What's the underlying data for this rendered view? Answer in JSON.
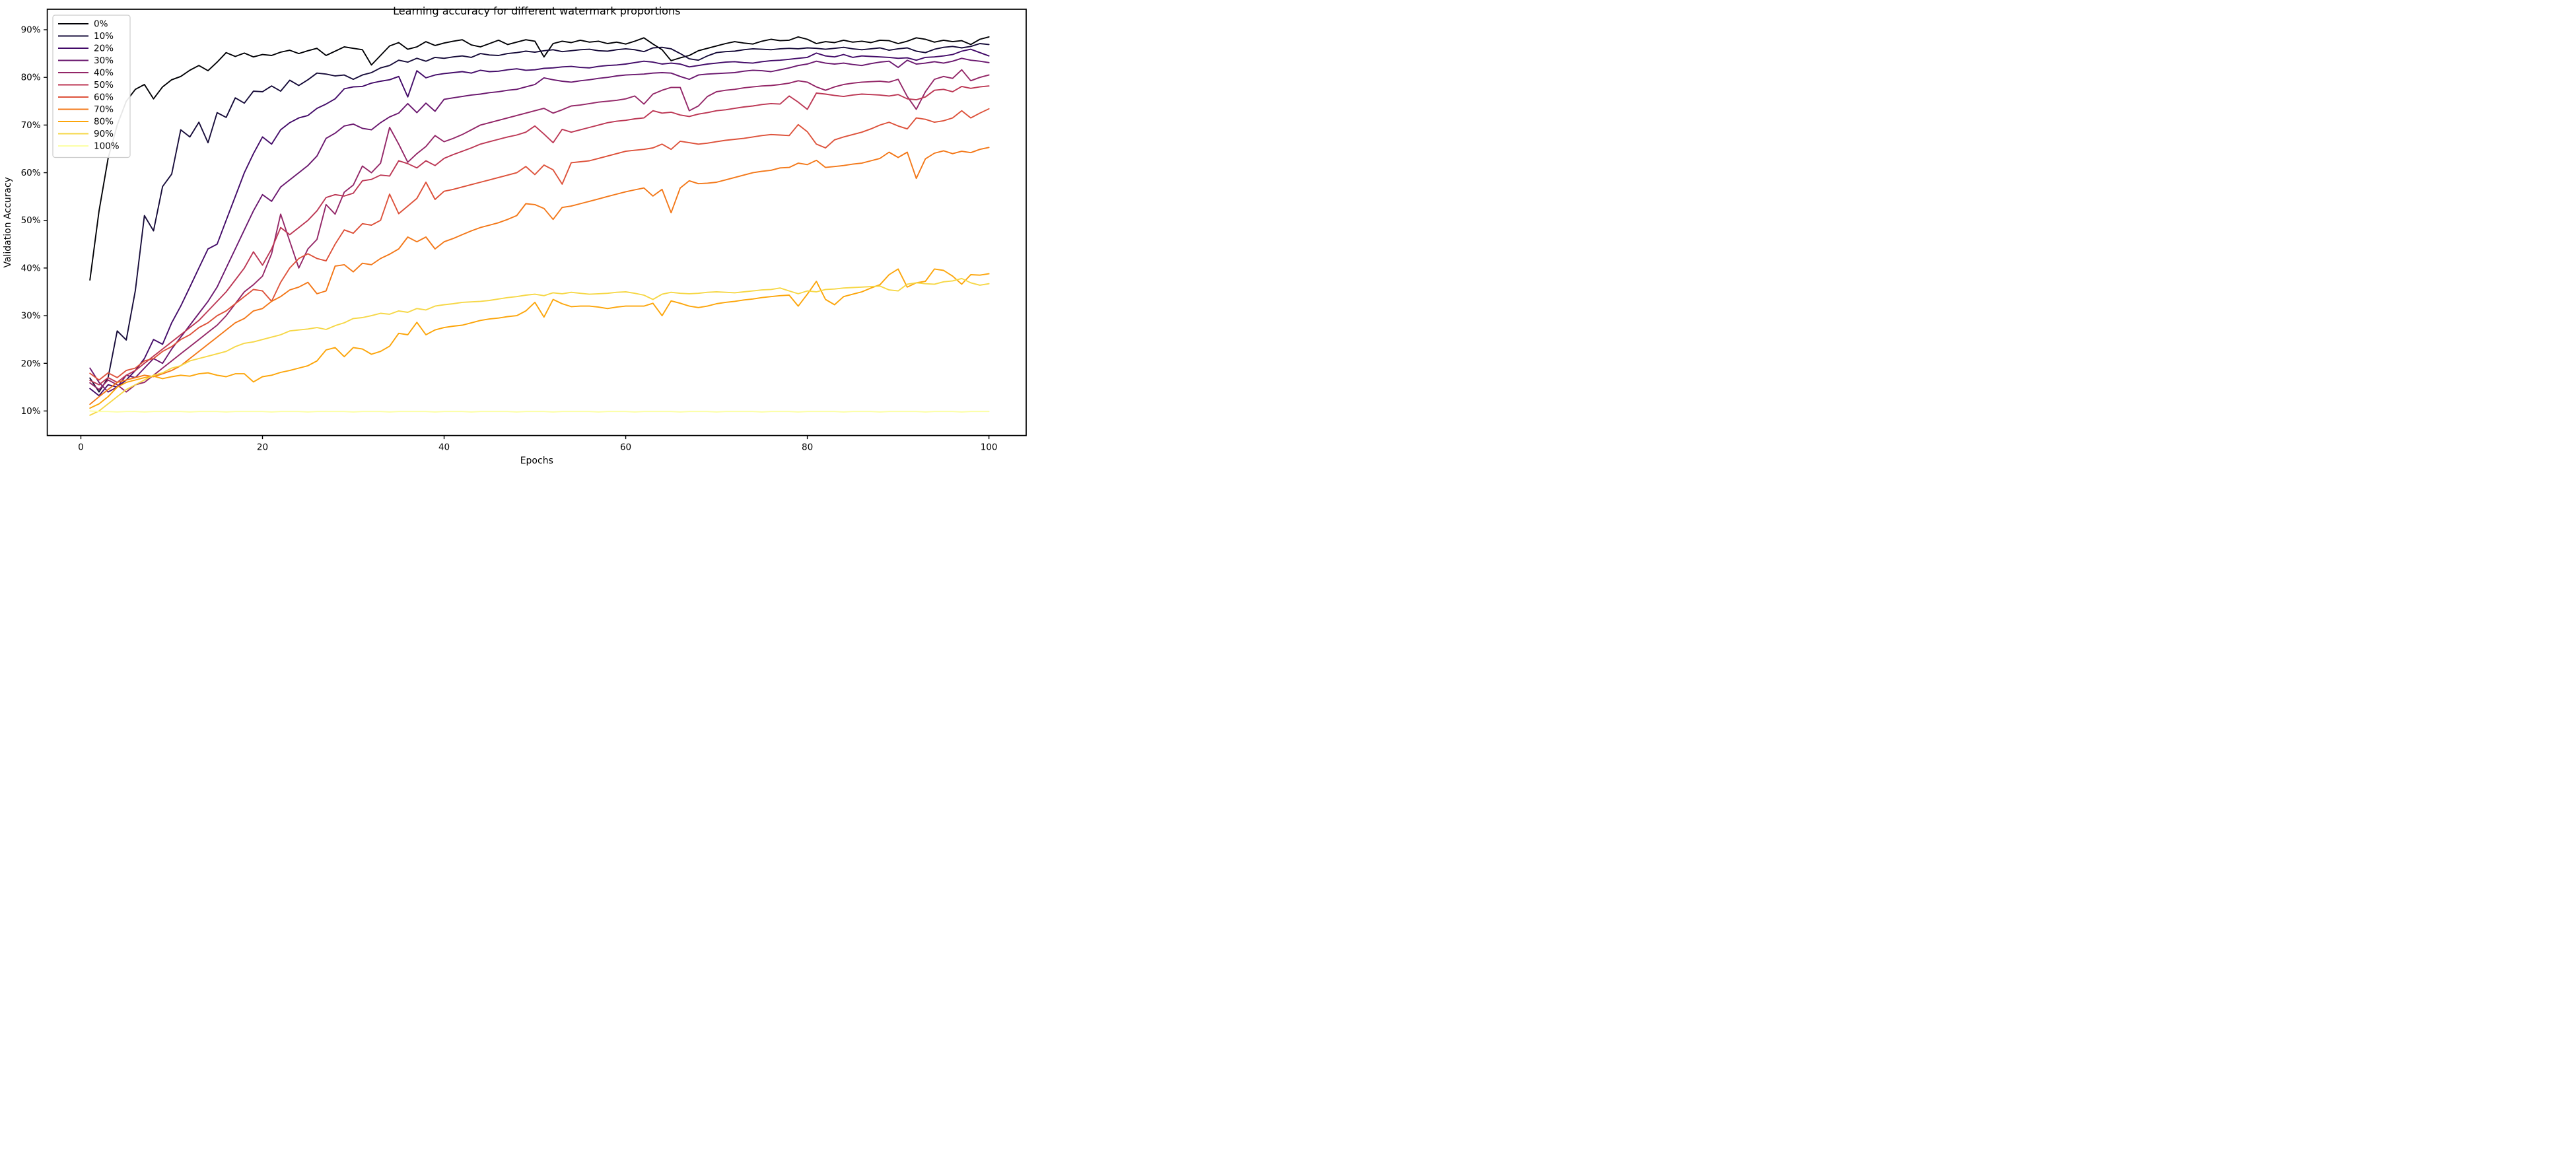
{
  "figure": {
    "title": "Learning accuracy for different watermark proportions",
    "xlabel": "Epochs",
    "ylabel": "Validation Accuracy",
    "background_color": "#ffffff",
    "spine_color": "#000000",
    "legend_border_color": "#cccccc"
  },
  "chart_data": {
    "type": "line",
    "title": "Learning accuracy for different watermark proportions",
    "xlabel": "Epochs",
    "ylabel": "Validation Accuracy",
    "grid": false,
    "legend_position": "upper left",
    "xlim": [
      -3.7,
      104.1
    ],
    "ylim": [
      4.85,
      94.3
    ],
    "xticks": [
      0,
      20,
      40,
      60,
      80,
      100
    ],
    "xticklabels": [
      "0",
      "20",
      "40",
      "60",
      "80",
      "100"
    ],
    "yticks": [
      10,
      20,
      30,
      40,
      50,
      60,
      70,
      80,
      90
    ],
    "yticklabels": [
      "10%",
      "20%",
      "30%",
      "40%",
      "50%",
      "60%",
      "70%",
      "80%",
      "90%"
    ],
    "x_start_epoch": 1,
    "series": [
      {
        "name": "0%",
        "color": "#000004",
        "values": [
          37.5,
          52,
          63,
          70,
          75,
          77.5,
          78.5,
          75.5,
          78,
          79.5,
          80.2,
          81.5,
          82.5,
          81.4,
          83.2,
          85.2,
          84.4,
          85.1,
          84.3,
          84.8,
          84.6,
          85.3,
          85.7,
          85,
          85.6,
          86.1,
          84.6,
          85.5,
          86.4,
          86.1,
          85.8,
          82.6,
          84.6,
          86.6,
          87.3,
          85.9,
          86.4,
          87.5,
          86.7,
          87.2,
          87.6,
          87.9,
          86.8,
          86.4,
          87.1,
          87.8,
          86.9,
          87.4,
          87.9,
          87.6,
          84.3,
          87.1,
          87.6,
          87.3,
          87.8,
          87.4,
          87.6,
          87.1,
          87.4,
          87,
          87.6,
          88.3,
          87,
          85.8,
          83.5,
          84.1,
          84.6,
          85.6,
          86.1,
          86.6,
          87.1,
          87.5,
          87.2,
          87,
          87.6,
          88,
          87.7,
          87.8,
          88.5,
          88,
          87.1,
          87.5,
          87.3,
          87.8,
          87.4,
          87.6,
          87.3,
          87.8,
          87.7,
          87.1,
          87.6,
          88.3,
          88,
          87.4,
          87.8,
          87.5,
          87.7,
          86.9,
          88,
          88.5
        ]
      },
      {
        "name": "10%",
        "color": "#160b39",
        "values": [
          16.9,
          14,
          17,
          26.8,
          24.9,
          35.3,
          51,
          47.8,
          57.1,
          59.7,
          69,
          67.5,
          70.6,
          66.3,
          72.6,
          71.6,
          75.7,
          74.6,
          77.1,
          77,
          78.2,
          77.1,
          79.4,
          78.3,
          79.5,
          80.9,
          80.7,
          80.3,
          80.5,
          79.6,
          80.5,
          81,
          82,
          82.5,
          83.6,
          83.2,
          84,
          83.4,
          84.2,
          84,
          84.3,
          84.5,
          84.2,
          85,
          84.7,
          84.6,
          85,
          85.2,
          85.5,
          85.3,
          85.6,
          85.8,
          85.4,
          85.6,
          85.8,
          85.9,
          85.6,
          85.5,
          85.8,
          86,
          85.8,
          85.4,
          86.2,
          86.3,
          86,
          85,
          83.9,
          83.6,
          84.5,
          85.2,
          85.4,
          85.5,
          85.8,
          86,
          85.9,
          85.8,
          86,
          86.1,
          86,
          86.2,
          86.1,
          85.9,
          86.1,
          86.3,
          86,
          85.8,
          86,
          86.2,
          85.7,
          86,
          86.2,
          85.5,
          85.2,
          85.9,
          86.3,
          86.5,
          86.2,
          86.5,
          87.1,
          86.9
        ]
      },
      {
        "name": "20%",
        "color": "#420a68",
        "values": [
          14.7,
          13.2,
          15.5,
          15,
          16.5,
          18.5,
          21,
          25,
          24,
          28.5,
          32,
          36,
          40,
          44,
          45,
          50,
          55,
          60,
          64,
          67.5,
          66,
          69,
          70.5,
          71.5,
          72,
          73.5,
          74.4,
          75.5,
          77.6,
          78,
          78.1,
          78.8,
          79.2,
          79.5,
          80.2,
          75.9,
          81.4,
          79.9,
          80.5,
          80.8,
          81,
          81.2,
          80.9,
          81.5,
          81.2,
          81.3,
          81.6,
          81.8,
          81.5,
          81.6,
          81.9,
          82,
          82.2,
          82.3,
          82.1,
          82,
          82.3,
          82.5,
          82.6,
          82.8,
          83.1,
          83.4,
          83.2,
          82.8,
          83,
          82.8,
          82.2,
          82.5,
          82.8,
          83,
          83.2,
          83.3,
          83.1,
          83,
          83.3,
          83.5,
          83.6,
          83.8,
          84,
          84.2,
          85.1,
          84.5,
          84.3,
          84.8,
          84.2,
          84.5,
          84.4,
          84.3,
          84.2,
          84,
          84.1,
          83.6,
          84.2,
          84.3,
          84.5,
          84.8,
          85.5,
          85.9,
          85.2,
          84.5
        ]
      },
      {
        "name": "30%",
        "color": "#6a176e",
        "values": [
          19,
          16,
          14,
          15,
          17.5,
          17,
          19,
          21,
          20,
          23,
          25.5,
          28,
          30.5,
          33,
          36,
          40,
          44,
          48,
          52,
          55.4,
          54,
          57,
          58.5,
          60,
          61.5,
          63.5,
          67.2,
          68.3,
          69.8,
          70.2,
          69.3,
          69,
          70.5,
          71.7,
          72.5,
          74.5,
          72.6,
          74.6,
          72.9,
          75.4,
          75.7,
          76,
          76.3,
          76.5,
          76.8,
          77,
          77.3,
          77.5,
          78,
          78.5,
          79.9,
          79.5,
          79.2,
          79,
          79.3,
          79.5,
          79.8,
          80,
          80.3,
          80.5,
          80.6,
          80.7,
          80.9,
          81,
          80.9,
          80.2,
          79.6,
          80.5,
          80.7,
          80.8,
          80.9,
          81,
          81.3,
          81.5,
          81.4,
          81.2,
          81.6,
          82,
          82.5,
          82.8,
          83.4,
          83,
          82.8,
          83,
          82.7,
          82.5,
          82.9,
          83.2,
          83.4,
          82.1,
          83.6,
          82.8,
          83,
          83.3,
          83,
          83.4,
          84,
          83.6,
          83.4,
          83.1
        ]
      },
      {
        "name": "40%",
        "color": "#932667",
        "values": [
          15.9,
          14.5,
          16.5,
          15.5,
          14,
          15.5,
          16,
          17.5,
          19,
          20.5,
          22,
          23.5,
          25,
          26.5,
          28,
          30,
          32.5,
          35,
          36.5,
          38.3,
          43,
          51.3,
          45.6,
          40,
          44,
          46,
          53.3,
          51.3,
          55.9,
          57.4,
          61.4,
          60,
          62,
          69.5,
          66,
          62.2,
          64,
          65.5,
          67.8,
          66.5,
          67.2,
          68,
          69,
          70,
          70.5,
          71,
          71.5,
          72,
          72.5,
          73,
          73.5,
          72.5,
          73.2,
          74,
          74.2,
          74.5,
          74.8,
          75,
          75.2,
          75.5,
          76.1,
          74.4,
          76.5,
          77.3,
          77.9,
          77.9,
          73,
          74,
          76,
          77,
          77.3,
          77.5,
          77.8,
          78,
          78.2,
          78.3,
          78.5,
          78.8,
          79.3,
          79,
          78,
          77.3,
          78,
          78.5,
          78.8,
          79,
          79.1,
          79.2,
          79,
          79.6,
          76,
          73.3,
          77,
          79.6,
          80.2,
          79.8,
          81.6,
          79.3,
          80,
          80.5
        ]
      },
      {
        "name": "50%",
        "color": "#bc3754",
        "values": [
          16.4,
          15.5,
          17,
          16,
          17.5,
          18.5,
          20,
          21.5,
          23,
          24.5,
          26,
          27.5,
          29,
          31,
          33,
          35,
          37.5,
          40,
          43.4,
          40.6,
          44,
          48.5,
          47,
          48.5,
          50,
          52,
          54.8,
          55.4,
          55.1,
          55.7,
          58.3,
          58.6,
          59.5,
          59.3,
          62.5,
          61.9,
          61,
          62.5,
          61.5,
          63,
          63.8,
          64.5,
          65.2,
          66,
          66.5,
          67,
          67.5,
          67.9,
          68.5,
          69.8,
          68.1,
          66.3,
          69.1,
          68.5,
          69,
          69.5,
          70,
          70.5,
          70.8,
          71,
          71.3,
          71.5,
          73,
          72.5,
          72.7,
          72.1,
          71.8,
          72.3,
          72.6,
          73,
          73.2,
          73.5,
          73.8,
          74,
          74.3,
          74.5,
          74.4,
          76.1,
          74.8,
          73.3,
          76.7,
          76.5,
          76.2,
          76,
          76.3,
          76.5,
          76.4,
          76.3,
          76.1,
          76.4,
          75.5,
          75.3,
          75.9,
          77.3,
          77.5,
          77,
          78.1,
          77.7,
          78,
          78.2
        ]
      },
      {
        "name": "60%",
        "color": "#dd513a",
        "values": [
          17.9,
          16.5,
          18,
          17,
          18.5,
          19,
          20.5,
          21,
          22.5,
          23.5,
          25,
          26,
          27.5,
          28.5,
          30,
          31,
          32.5,
          34,
          35.5,
          35.2,
          33,
          37,
          40,
          42,
          43,
          42,
          41.5,
          45,
          48,
          47.3,
          49.3,
          49,
          50,
          55.5,
          51.4,
          53,
          54.6,
          58,
          54.4,
          56.1,
          56.5,
          57,
          57.5,
          58,
          58.5,
          59,
          59.5,
          60,
          61.3,
          59.6,
          61.6,
          60.6,
          57.6,
          62.1,
          62.3,
          62.5,
          63,
          63.5,
          64,
          64.5,
          64.7,
          64.9,
          65.2,
          66,
          64.9,
          66.6,
          66.3,
          66,
          66.2,
          66.5,
          66.8,
          67,
          67.2,
          67.5,
          67.8,
          68,
          67.9,
          67.8,
          70.1,
          68.6,
          66,
          65.2,
          66.9,
          67.5,
          68,
          68.5,
          69.2,
          70,
          70.6,
          69.8,
          69.2,
          71.5,
          71.2,
          70.6,
          70.9,
          71.5,
          73,
          71.5,
          72.5,
          73.4
        ]
      },
      {
        "name": "70%",
        "color": "#f37819",
        "values": [
          11.4,
          13,
          14.5,
          16,
          16.5,
          17,
          17.5,
          17.2,
          17.8,
          18.5,
          19.5,
          21,
          22.5,
          24,
          25.5,
          27,
          28.5,
          29.4,
          31,
          31.5,
          33,
          34,
          35.4,
          36,
          37,
          34.6,
          35.2,
          40.4,
          40.7,
          39.2,
          41,
          40.7,
          42,
          42.9,
          44,
          46.5,
          45.5,
          46.5,
          44,
          45.5,
          46.2,
          47,
          47.8,
          48.5,
          49,
          49.5,
          50.2,
          51,
          53.5,
          53.3,
          52.5,
          50.2,
          52.7,
          53,
          53.5,
          54,
          54.5,
          55,
          55.5,
          56,
          56.4,
          56.8,
          55.1,
          56.5,
          51.6,
          56.8,
          58.3,
          57.7,
          57.8,
          58,
          58.5,
          59,
          59.5,
          60,
          60.3,
          60.5,
          61,
          61.1,
          62,
          61.7,
          62.6,
          61.1,
          61.3,
          61.5,
          61.8,
          62,
          62.5,
          63,
          64.3,
          63.2,
          64.3,
          58.8,
          62.9,
          64.1,
          64.6,
          64,
          64.5,
          64.2,
          64.9,
          65.3
        ]
      },
      {
        "name": "80%",
        "color": "#fca50a",
        "values": [
          10.6,
          11.5,
          13,
          15,
          16,
          16.5,
          17,
          17.3,
          16.8,
          17.2,
          17.5,
          17.3,
          17.8,
          18,
          17.5,
          17.2,
          17.8,
          17.8,
          16.1,
          17.2,
          17.5,
          18.1,
          18.5,
          19,
          19.5,
          20.5,
          22.8,
          23.3,
          21.4,
          23.3,
          23,
          21.9,
          22.5,
          23.6,
          26.3,
          26,
          28.6,
          26,
          27,
          27.5,
          27.8,
          28,
          28.5,
          29,
          29.3,
          29.5,
          29.8,
          30,
          31,
          32.8,
          29.7,
          33.4,
          32.5,
          31.9,
          32,
          32,
          31.8,
          31.5,
          31.8,
          32,
          32,
          32,
          32.6,
          30,
          33.1,
          32.6,
          32,
          31.7,
          32,
          32.5,
          32.8,
          33,
          33.3,
          33.5,
          33.8,
          34,
          34.2,
          34.3,
          32,
          34.5,
          37.2,
          33.4,
          32.3,
          34,
          34.5,
          35,
          35.8,
          36.5,
          38.6,
          39.8,
          36,
          36.9,
          37.2,
          39.8,
          39.5,
          38.3,
          36.6,
          38.6,
          38.5,
          38.8
        ]
      },
      {
        "name": "90%",
        "color": "#f6d746",
        "values": [
          9.1,
          10,
          11.5,
          13,
          14.5,
          15.5,
          16.5,
          17.5,
          18,
          19,
          19.5,
          20.5,
          21,
          21.5,
          22,
          22.5,
          23.5,
          24.2,
          24.5,
          25,
          25.5,
          26,
          26.8,
          27,
          27.2,
          27.5,
          27.1,
          27.9,
          28.5,
          29.4,
          29.6,
          30,
          30.5,
          30.3,
          31,
          30.7,
          31.5,
          31.2,
          32,
          32.3,
          32.5,
          32.8,
          32.9,
          33,
          33.2,
          33.5,
          33.8,
          34,
          34.3,
          34.5,
          34.2,
          34.8,
          34.6,
          34.9,
          34.7,
          34.5,
          34.6,
          34.7,
          34.9,
          35,
          34.7,
          34.3,
          33.4,
          34.5,
          34.9,
          34.7,
          34.6,
          34.7,
          34.9,
          35,
          34.9,
          34.8,
          35,
          35.2,
          35.4,
          35.5,
          35.8,
          35.2,
          34.6,
          35.2,
          35,
          35.5,
          35.6,
          35.8,
          35.9,
          36,
          36.1,
          36.2,
          35.4,
          35.2,
          36.6,
          36.9,
          36.7,
          36.6,
          37.1,
          37.3,
          37.8,
          36.9,
          36.4,
          36.7
        ]
      },
      {
        "name": "100%",
        "color": "#fcffa4",
        "values": [
          10,
          9.9,
          9.9,
          9.8,
          9.9,
          9.9,
          9.8,
          9.9,
          9.9,
          9.9,
          9.9,
          9.8,
          9.9,
          9.9,
          9.9,
          9.8,
          9.9,
          9.9,
          9.9,
          9.9,
          9.8,
          9.9,
          9.9,
          9.9,
          9.8,
          9.9,
          9.9,
          9.9,
          9.9,
          9.8,
          9.9,
          9.9,
          9.9,
          9.8,
          9.9,
          9.9,
          9.9,
          9.9,
          9.8,
          9.9,
          9.9,
          9.9,
          9.8,
          9.9,
          9.9,
          9.9,
          9.9,
          9.8,
          9.9,
          9.9,
          9.9,
          9.8,
          9.9,
          9.9,
          9.9,
          9.9,
          9.8,
          9.9,
          9.9,
          9.9,
          9.8,
          9.9,
          9.9,
          9.9,
          9.9,
          9.8,
          9.9,
          9.9,
          9.9,
          9.8,
          9.9,
          9.9,
          9.9,
          9.9,
          9.8,
          9.9,
          9.9,
          9.9,
          9.8,
          9.9,
          9.9,
          9.9,
          9.9,
          9.8,
          9.9,
          9.9,
          9.9,
          9.8,
          9.9,
          9.9,
          9.9,
          9.9,
          9.8,
          9.9,
          9.9,
          9.9,
          9.8,
          9.9,
          9.9,
          9.9
        ]
      }
    ]
  }
}
